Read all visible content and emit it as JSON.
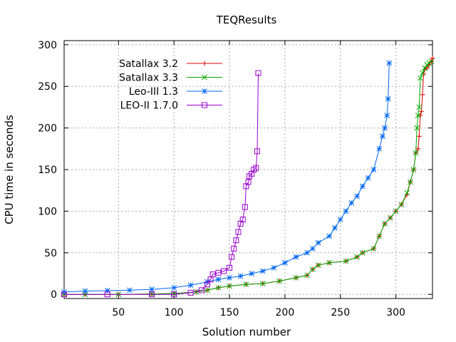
{
  "chart_data": {
    "type": "line",
    "title": "TEQResults",
    "xlabel": "Solution number",
    "ylabel": "CPU time in seconds",
    "xlim": [
      1,
      333
    ],
    "ylim": [
      -5,
      305
    ],
    "xticks": [
      50,
      100,
      150,
      200,
      250,
      300
    ],
    "yticks": [
      0,
      50,
      100,
      150,
      200,
      250,
      300
    ],
    "grid": true,
    "legend_position": "top-left",
    "series": [
      {
        "name": "Satallax 3.2",
        "color": "#dd0000",
        "marker": "plus",
        "points": [
          [
            1,
            0
          ],
          [
            20,
            0
          ],
          [
            50,
            0
          ],
          [
            80,
            0.5
          ],
          [
            100,
            1
          ],
          [
            120,
            3
          ],
          [
            130,
            5
          ],
          [
            140,
            8
          ],
          [
            150,
            10
          ],
          [
            165,
            12
          ],
          [
            180,
            13
          ],
          [
            195,
            16
          ],
          [
            210,
            20
          ],
          [
            220,
            23
          ],
          [
            225,
            30
          ],
          [
            230,
            35
          ],
          [
            240,
            38
          ],
          [
            255,
            40
          ],
          [
            265,
            45
          ],
          [
            270,
            50
          ],
          [
            280,
            55
          ],
          [
            285,
            70
          ],
          [
            290,
            85
          ],
          [
            295,
            92
          ],
          [
            300,
            100
          ],
          [
            305,
            108
          ],
          [
            310,
            120
          ],
          [
            313,
            135
          ],
          [
            316,
            150
          ],
          [
            318,
            170
          ],
          [
            320,
            175
          ],
          [
            321,
            190
          ],
          [
            322,
            215
          ],
          [
            323,
            220
          ],
          [
            324,
            240
          ],
          [
            325,
            265
          ],
          [
            326,
            270
          ],
          [
            328,
            272
          ],
          [
            330,
            276
          ],
          [
            332,
            280
          ],
          [
            333,
            284
          ]
        ]
      },
      {
        "name": "Satallax 3.3",
        "color": "#00aa00",
        "marker": "x",
        "points": [
          [
            1,
            0
          ],
          [
            20,
            0
          ],
          [
            50,
            0
          ],
          [
            80,
            0.5
          ],
          [
            100,
            1
          ],
          [
            120,
            3
          ],
          [
            130,
            5
          ],
          [
            140,
            8
          ],
          [
            150,
            10
          ],
          [
            165,
            12
          ],
          [
            180,
            13
          ],
          [
            195,
            16
          ],
          [
            210,
            20
          ],
          [
            220,
            23
          ],
          [
            225,
            30
          ],
          [
            230,
            35
          ],
          [
            240,
            38
          ],
          [
            255,
            40
          ],
          [
            265,
            45
          ],
          [
            270,
            50
          ],
          [
            280,
            55
          ],
          [
            285,
            70
          ],
          [
            290,
            85
          ],
          [
            295,
            92
          ],
          [
            300,
            100
          ],
          [
            305,
            108
          ],
          [
            310,
            122
          ],
          [
            313,
            135
          ],
          [
            316,
            150
          ],
          [
            318,
            170
          ],
          [
            319,
            200
          ],
          [
            320,
            215
          ],
          [
            321,
            225
          ],
          [
            322,
            260
          ],
          [
            324,
            266
          ],
          [
            326,
            272
          ],
          [
            328,
            276
          ],
          [
            330,
            278
          ],
          [
            332,
            280
          ]
        ]
      },
      {
        "name": "Leo-III 1.3",
        "color": "#0066ee",
        "marker": "star",
        "points": [
          [
            1,
            3
          ],
          [
            20,
            4
          ],
          [
            40,
            4.5
          ],
          [
            60,
            5
          ],
          [
            80,
            6
          ],
          [
            100,
            8
          ],
          [
            115,
            11
          ],
          [
            130,
            15
          ],
          [
            140,
            18
          ],
          [
            150,
            20
          ],
          [
            160,
            22
          ],
          [
            170,
            25
          ],
          [
            180,
            28
          ],
          [
            190,
            32
          ],
          [
            200,
            38
          ],
          [
            210,
            45
          ],
          [
            220,
            50
          ],
          [
            225,
            55
          ],
          [
            230,
            62
          ],
          [
            240,
            70
          ],
          [
            245,
            80
          ],
          [
            250,
            90
          ],
          [
            255,
            100
          ],
          [
            260,
            110
          ],
          [
            265,
            118
          ],
          [
            270,
            130
          ],
          [
            275,
            140
          ],
          [
            280,
            150
          ],
          [
            285,
            175
          ],
          [
            288,
            190
          ],
          [
            290,
            200
          ],
          [
            292,
            215
          ],
          [
            293,
            235
          ],
          [
            294,
            278
          ]
        ]
      },
      {
        "name": "LEO-II 1.7.0",
        "color": "#9900cc",
        "marker": "square",
        "points": [
          [
            1,
            0
          ],
          [
            40,
            0
          ],
          [
            80,
            0
          ],
          [
            100,
            0
          ],
          [
            115,
            2
          ],
          [
            125,
            5
          ],
          [
            130,
            12
          ],
          [
            133,
            18
          ],
          [
            135,
            24
          ],
          [
            140,
            26
          ],
          [
            145,
            28
          ],
          [
            150,
            32
          ],
          [
            152,
            45
          ],
          [
            154,
            55
          ],
          [
            156,
            65
          ],
          [
            158,
            75
          ],
          [
            160,
            85
          ],
          [
            162,
            90
          ],
          [
            164,
            105
          ],
          [
            165,
            130
          ],
          [
            167,
            135
          ],
          [
            168,
            142
          ],
          [
            170,
            145
          ],
          [
            172,
            150
          ],
          [
            174,
            152
          ],
          [
            175,
            172
          ],
          [
            176,
            266
          ]
        ]
      }
    ]
  }
}
